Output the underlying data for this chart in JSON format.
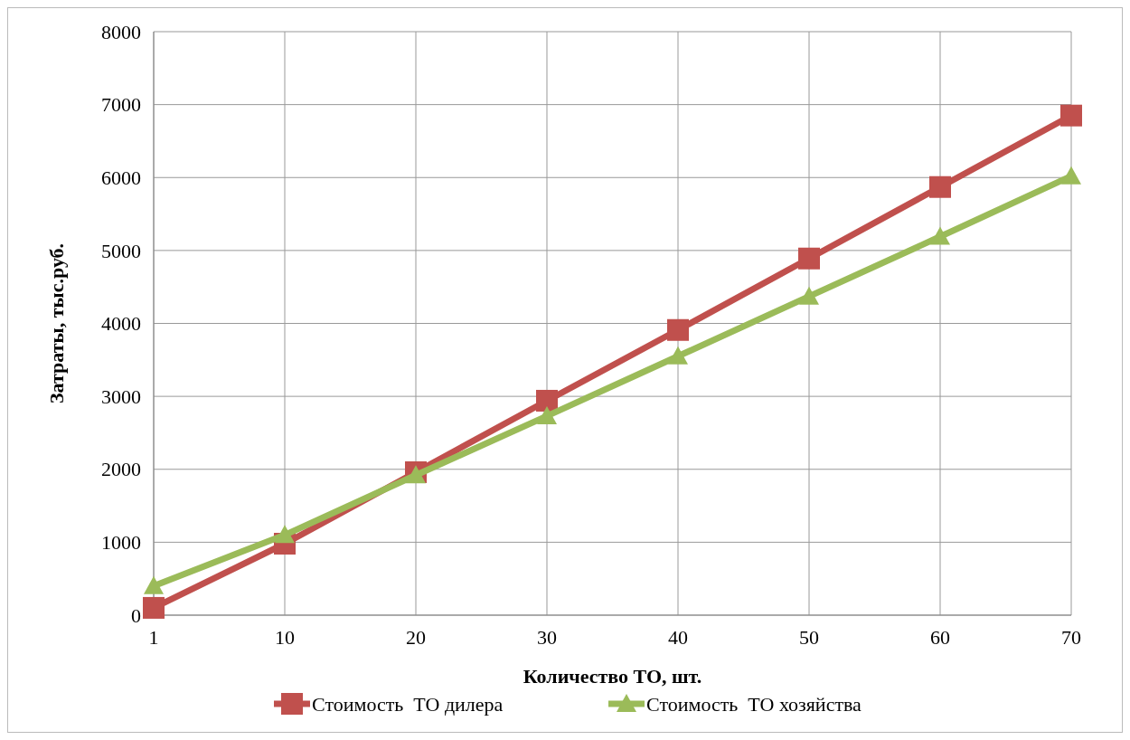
{
  "chart_data": {
    "type": "line",
    "xlabel": "Количество ТО, шт.",
    "ylabel": "Затраты, тыс.руб.",
    "categories": [
      "1",
      "10",
      "20",
      "30",
      "40",
      "50",
      "60",
      "70"
    ],
    "series": [
      {
        "name": "Стоимость  ТО дилера",
        "color": "#c0504d",
        "marker": "square",
        "values": [
          100,
          980,
          1960,
          2940,
          3910,
          4890,
          5870,
          6850
        ]
      },
      {
        "name": "Стоимость  ТО хозяйства",
        "color": "#9bbb59",
        "marker": "triangle",
        "values": [
          400,
          1100,
          1920,
          2730,
          3550,
          4370,
          5190,
          6020
        ]
      }
    ],
    "ylim": [
      0,
      8000
    ],
    "yticks": [
      0,
      1000,
      2000,
      3000,
      4000,
      5000,
      6000,
      7000,
      8000
    ],
    "grid": true,
    "legend": "bottom"
  }
}
